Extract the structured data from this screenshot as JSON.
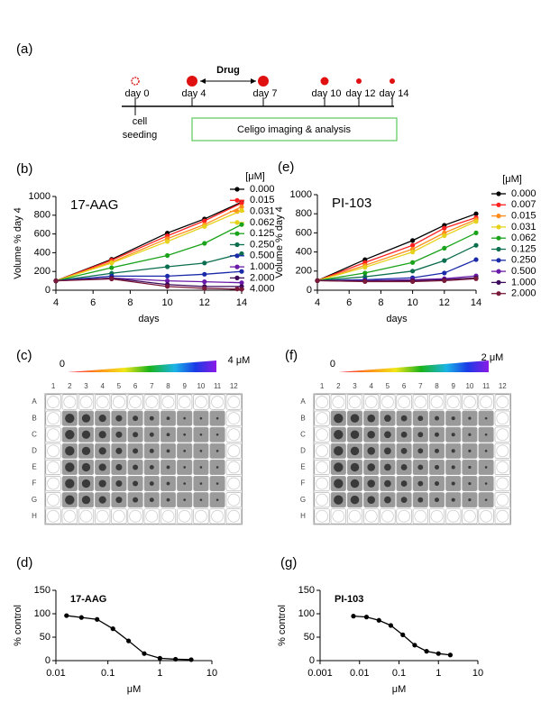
{
  "timeline": {
    "label": "(a)",
    "days": [
      "day 0",
      "day 4",
      "day 7",
      "day 10",
      "day 12",
      "day 14"
    ],
    "drug": "Drug",
    "seeding": [
      "cell",
      "seeding"
    ],
    "imaging": "Celigo imaging & analysis"
  },
  "chart_data": [
    {
      "type": "line",
      "panel_label": "(b)",
      "annotation": "17-AAG",
      "legend_title": "[μM]",
      "xlabel": "days",
      "ylabel": "Volume % day 4",
      "x": [
        4,
        7,
        10,
        12,
        14
      ],
      "xlim": [
        4,
        14
      ],
      "xticks": [
        4,
        6,
        8,
        10,
        12,
        14
      ],
      "ylim": [
        0,
        1000
      ],
      "yticks": [
        0,
        200,
        400,
        600,
        800,
        1000
      ],
      "series": [
        {
          "name": "0.000",
          "color": "#000000",
          "values": [
            100,
            330,
            610,
            760,
            940
          ]
        },
        {
          "name": "0.015",
          "color": "#ff2020",
          "values": [
            100,
            320,
            580,
            740,
            930
          ]
        },
        {
          "name": "0.031",
          "color": "#ff8c1a",
          "values": [
            100,
            300,
            550,
            700,
            890
          ]
        },
        {
          "name": "0.062",
          "color": "#e6d21a",
          "values": [
            100,
            290,
            520,
            680,
            850
          ]
        },
        {
          "name": "0.125",
          "color": "#1aa31a",
          "values": [
            100,
            240,
            370,
            500,
            700
          ]
        },
        {
          "name": "0.250",
          "color": "#0b6e4f",
          "values": [
            100,
            180,
            250,
            290,
            390
          ]
        },
        {
          "name": "0.500",
          "color": "#1a2aa8",
          "values": [
            100,
            150,
            150,
            170,
            200
          ]
        },
        {
          "name": "1.000",
          "color": "#6a1aa8",
          "values": [
            100,
            130,
            100,
            90,
            80
          ]
        },
        {
          "name": "2.000",
          "color": "#3d0a5c",
          "values": [
            100,
            130,
            60,
            40,
            40
          ]
        },
        {
          "name": "4.000",
          "color": "#7a1a3a",
          "values": [
            100,
            120,
            40,
            20,
            10
          ]
        }
      ]
    },
    {
      "type": "line",
      "panel_label": "(e)",
      "annotation": "PI-103",
      "legend_title": "[μM]",
      "xlabel": "days",
      "ylabel": "Volume % day 4",
      "x": [
        4,
        7,
        10,
        12,
        14
      ],
      "xlim": [
        4,
        14
      ],
      "xticks": [
        4,
        6,
        8,
        10,
        12,
        14
      ],
      "ylim": [
        0,
        1000
      ],
      "yticks": [
        0,
        200,
        400,
        600,
        800,
        1000
      ],
      "series": [
        {
          "name": "0.000",
          "color": "#000000",
          "values": [
            100,
            320,
            520,
            680,
            800
          ]
        },
        {
          "name": "0.007",
          "color": "#ff2020",
          "values": [
            100,
            290,
            470,
            650,
            760
          ]
        },
        {
          "name": "0.015",
          "color": "#ff8c1a",
          "values": [
            100,
            260,
            430,
            600,
            740
          ]
        },
        {
          "name": "0.031",
          "color": "#e6d21a",
          "values": [
            100,
            240,
            400,
            570,
            720
          ]
        },
        {
          "name": "0.062",
          "color": "#1aa31a",
          "values": [
            100,
            180,
            290,
            440,
            600
          ]
        },
        {
          "name": "0.125",
          "color": "#0b6e4f",
          "values": [
            100,
            140,
            200,
            310,
            470
          ]
        },
        {
          "name": "0.250",
          "color": "#1a2aa8",
          "values": [
            100,
            110,
            130,
            180,
            320
          ]
        },
        {
          "name": "0.500",
          "color": "#6a1aa8",
          "values": [
            100,
            100,
            110,
            120,
            150
          ]
        },
        {
          "name": "1.000",
          "color": "#3d0a5c",
          "values": [
            100,
            95,
            100,
            110,
            130
          ]
        },
        {
          "name": "2.000",
          "color": "#7a1a3a",
          "values": [
            100,
            90,
            90,
            100,
            120
          ]
        }
      ]
    },
    {
      "type": "line",
      "panel_label": "(d)",
      "annotation": "17-AAG",
      "xlabel": "μM",
      "ylabel": "% control",
      "log_x": true,
      "x": [
        0.016,
        0.031,
        0.062,
        0.125,
        0.25,
        0.5,
        1,
        2,
        4
      ],
      "xlim": [
        0.01,
        10
      ],
      "xticks": [
        0.01,
        0.1,
        1,
        10
      ],
      "ylim": [
        0,
        150
      ],
      "yticks": [
        0,
        50,
        100,
        150
      ],
      "series": [
        {
          "color": "#000000",
          "values": [
            96,
            92,
            88,
            68,
            42,
            15,
            5,
            3,
            2
          ]
        }
      ]
    },
    {
      "type": "line",
      "panel_label": "(g)",
      "annotation": "PI-103",
      "xlabel": "μM",
      "ylabel": "% control",
      "log_x": true,
      "x": [
        0.007,
        0.015,
        0.031,
        0.062,
        0.125,
        0.25,
        0.5,
        1,
        2
      ],
      "xlim": [
        0.001,
        10
      ],
      "xticks": [
        0.001,
        0.01,
        0.1,
        1,
        10
      ],
      "ylim": [
        0,
        150
      ],
      "yticks": [
        0,
        50,
        100,
        150
      ],
      "series": [
        {
          "color": "#000000",
          "values": [
            95,
            93,
            86,
            75,
            55,
            33,
            20,
            15,
            12
          ]
        }
      ]
    }
  ],
  "plates": [
    {
      "label": "(c)",
      "gradient_start": "0",
      "gradient_end": "4 μM",
      "columns": [
        "1",
        "2",
        "3",
        "4",
        "5",
        "6",
        "7",
        "8",
        "9",
        "10",
        "11",
        "12"
      ],
      "rows": [
        "A",
        "B",
        "C",
        "D",
        "E",
        "F",
        "G",
        "H"
      ]
    },
    {
      "label": "(f)",
      "gradient_start": "0",
      "gradient_end": "2 μM",
      "columns": [
        "1",
        "2",
        "3",
        "4",
        "5",
        "6",
        "7",
        "8",
        "9",
        "10",
        "11",
        "12"
      ],
      "rows": [
        "A",
        "B",
        "C",
        "D",
        "E",
        "F",
        "G",
        "H"
      ]
    }
  ]
}
